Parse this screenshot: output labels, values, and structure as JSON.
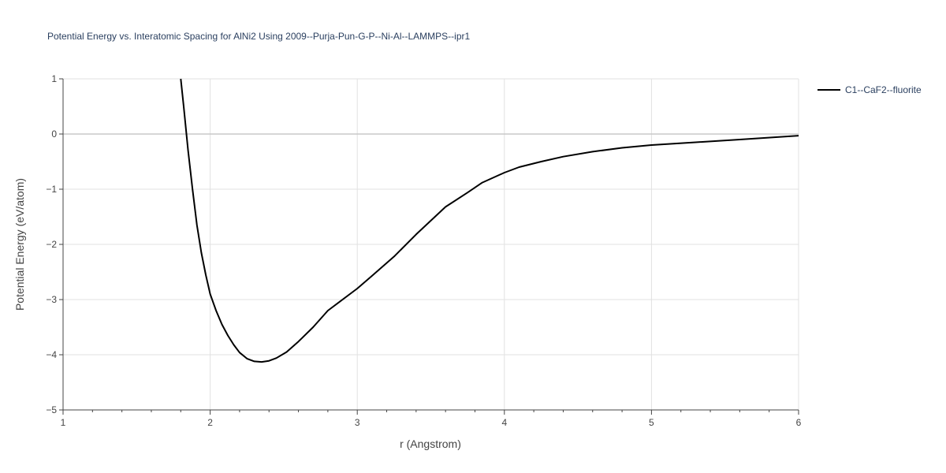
{
  "chart_data": {
    "type": "line",
    "title": "Potential Energy vs. Interatomic Spacing for AlNi2 Using 2009--Purja-Pun-G-P--Ni-Al--LAMMPS--ipr1",
    "xlabel": "r (Angstrom)",
    "ylabel": "Potential Energy (eV/atom)",
    "xlim": [
      1,
      6
    ],
    "ylim": [
      -5,
      1
    ],
    "x_ticks": [
      1,
      2,
      3,
      4,
      5,
      6
    ],
    "y_ticks": [
      1,
      0,
      -1,
      -2,
      -3,
      -4,
      -5
    ],
    "x_tick_labels": [
      "1",
      "2",
      "3",
      "4",
      "5",
      "6"
    ],
    "y_tick_labels": [
      "1",
      "0",
      "−1",
      "−2",
      "−3",
      "−4",
      "−5"
    ],
    "x_minor_ticks": [
      1.2,
      1.4,
      1.6,
      1.8,
      2.2,
      2.4,
      2.6,
      2.8,
      3.2,
      3.4,
      3.6,
      3.8,
      4.2,
      4.4,
      4.6,
      4.8,
      5.2,
      5.4,
      5.6,
      5.8
    ],
    "grid": true,
    "legend_position": "top-right",
    "series": [
      {
        "name": "C1--CaF2--fluorite",
        "color": "#000000",
        "x": [
          1.8,
          1.82,
          1.85,
          1.88,
          1.91,
          1.94,
          1.97,
          2.0,
          2.04,
          2.08,
          2.12,
          2.16,
          2.2,
          2.25,
          2.3,
          2.35,
          2.4,
          2.45,
          2.52,
          2.6,
          2.7,
          2.8,
          2.88,
          3.0,
          3.1,
          3.25,
          3.4,
          3.6,
          3.75,
          3.85,
          4.0,
          4.1,
          4.25,
          4.4,
          4.6,
          4.8,
          5.0,
          5.3,
          5.6,
          6.0
        ],
        "y": [
          1.0,
          0.5,
          -0.3,
          -1.0,
          -1.65,
          -2.15,
          -2.55,
          -2.9,
          -3.2,
          -3.45,
          -3.65,
          -3.82,
          -3.96,
          -4.07,
          -4.12,
          -4.13,
          -4.11,
          -4.06,
          -3.95,
          -3.76,
          -3.5,
          -3.2,
          -3.04,
          -2.8,
          -2.57,
          -2.22,
          -1.82,
          -1.32,
          -1.06,
          -0.88,
          -0.7,
          -0.6,
          -0.5,
          -0.41,
          -0.32,
          -0.25,
          -0.2,
          -0.15,
          -0.1,
          -0.03
        ]
      }
    ]
  }
}
